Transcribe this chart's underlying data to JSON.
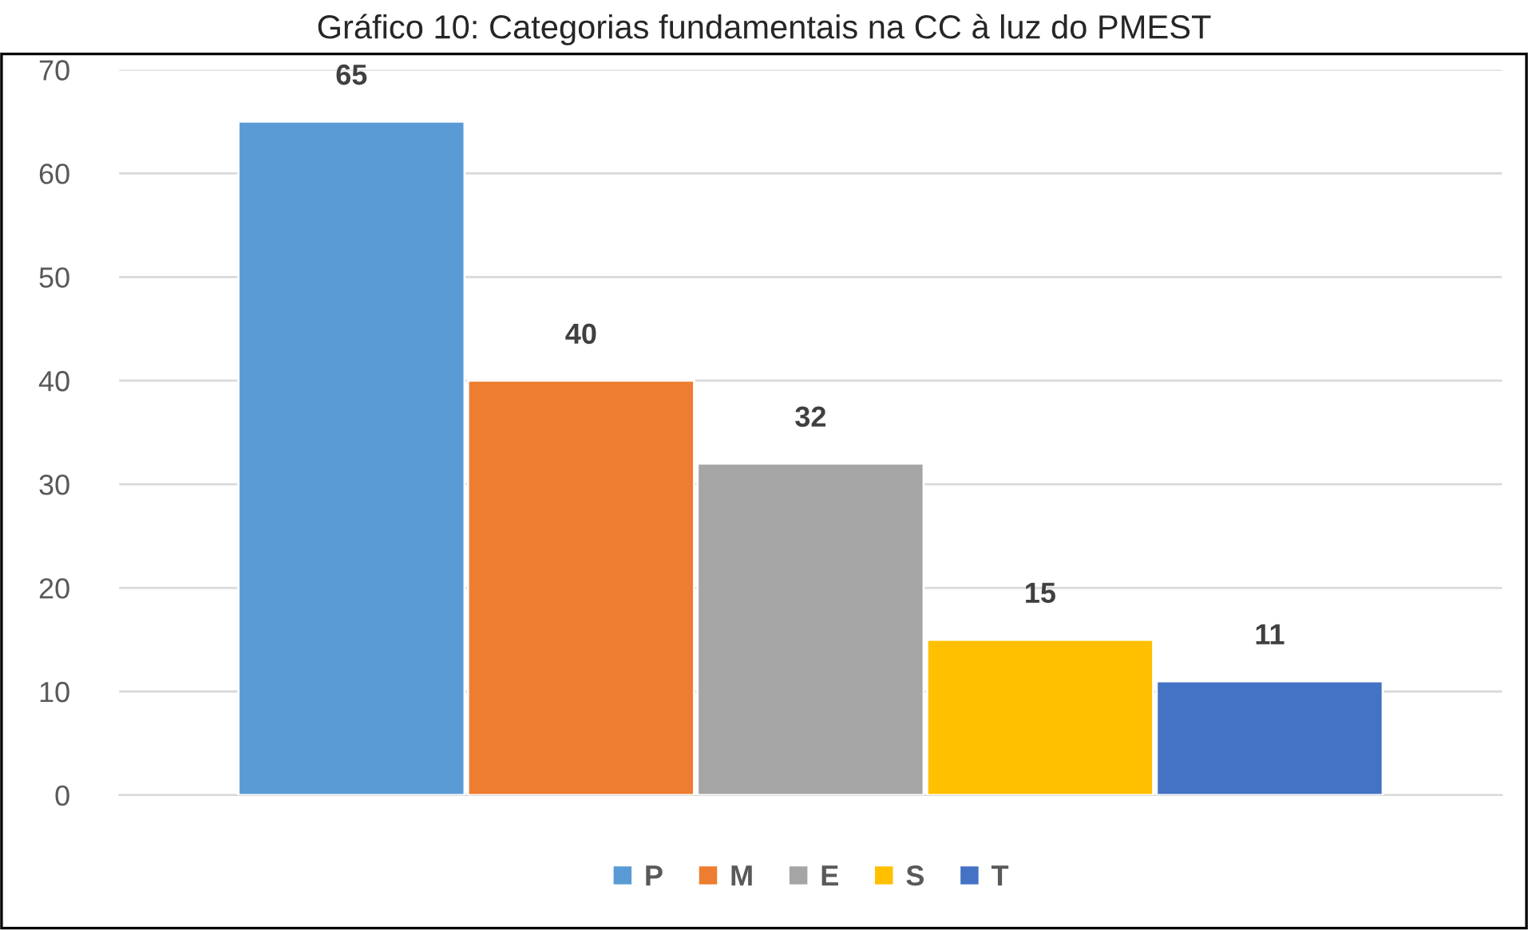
{
  "chart_data": {
    "type": "bar",
    "title": "Gráfico 10: Categorias fundamentais na CC à luz do PMEST",
    "categories": [
      null
    ],
    "series": [
      {
        "name": "P",
        "color": "#5b9bd5",
        "values": [
          65
        ]
      },
      {
        "name": "M",
        "color": "#ed7d31",
        "values": [
          40
        ]
      },
      {
        "name": "E",
        "color": "#a5a5a5",
        "values": [
          32
        ]
      },
      {
        "name": "S",
        "color": "#ffc000",
        "values": [
          15
        ]
      },
      {
        "name": "T",
        "color": "#4472c4",
        "values": [
          11
        ]
      }
    ],
    "ylim": [
      0,
      70
    ],
    "yticks": [
      0,
      10,
      20,
      30,
      40,
      50,
      60,
      70
    ],
    "grid": "y",
    "legend": "bottom",
    "data_labels": true
  }
}
